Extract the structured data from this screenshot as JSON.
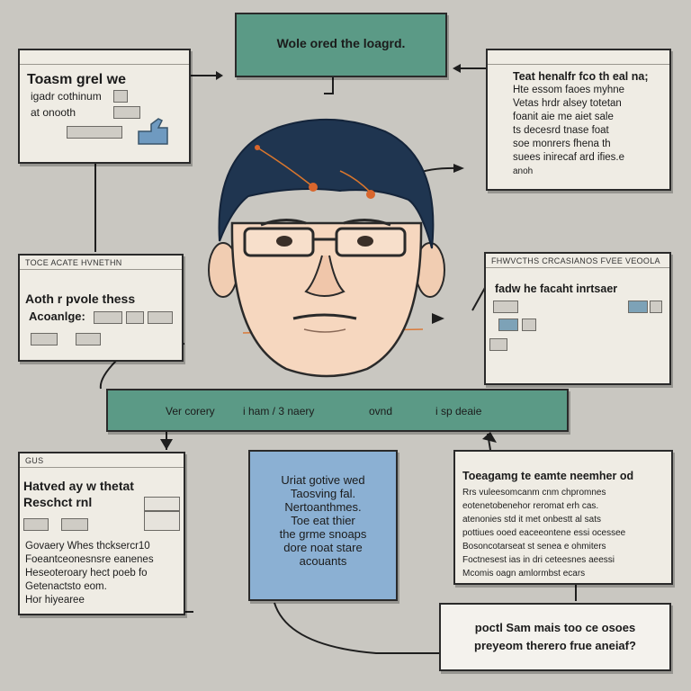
{
  "top_banner": {
    "title": "Wole ored the loagrd."
  },
  "top_left_panel": {
    "header": "",
    "title": "Toasm grel we",
    "lines": [
      "igadr cothinum",
      "at onooth"
    ]
  },
  "top_right_panel": {
    "header": "",
    "lines": [
      "Teat henalfr fco th eal na;",
      "Hte essom faoes myhne",
      "Vetas hrdr alsey totetan",
      "foanit aie me aiet sale",
      "ts decesrd tnase foat",
      "soe monrers fhena th",
      "suees inirecaf ard ifies.e",
      "anoh"
    ]
  },
  "mid_left_panel": {
    "header": "TOCE ACATE HVNETHN",
    "title": "Aoth r pvole thess",
    "subtitle": "Acoanlge:"
  },
  "mid_right_panel": {
    "header": "FHWVCTHS CRCASIANOS FVEE VEOOLA",
    "title": "fadw he facaht inrtsaer"
  },
  "middle_banner": {
    "items": [
      "Ver corery",
      "i ham / 3 naery",
      "ovnd",
      "i sp deaie"
    ]
  },
  "bottom_left_panel": {
    "header": "GUS",
    "title_line1": "Hatved ay w thetat",
    "title_line2": "Reschct rnl",
    "lines": [
      "Govaery Whes thcksercr10",
      "Foeantceonesnsre eanenes",
      "Heseoteroary hect poeb fo",
      "Getenactsto eom.",
      "Hor hiyearee"
    ]
  },
  "center_box": {
    "lines": [
      "Uriat gotive wed",
      "Taosving fal.",
      "Nertoanthmes.",
      "Toe eat thier",
      "the grme snoaps",
      "dore noat stare",
      "acouants"
    ]
  },
  "bottom_right_panel": {
    "title": "Toeagamg te eamte neemher od",
    "lines": [
      "Rrs vuleesomcanm cnm chpromnes",
      "eotenetobenehor reromat erh cas.",
      "atenonies std it met onbestt al sats",
      "pottiues ooed eaceeontene essi ocessee",
      "Bosoncotarseat st senea e ohmiters",
      "Foctnesest ias in dri ceteesnes aeessi",
      "Mcomis oagn amlormbst ecars"
    ]
  },
  "bottom_caption": {
    "line1": "poctl Sam mais too ce osoes",
    "line2": "preyeom therero frue aneiaf?"
  }
}
